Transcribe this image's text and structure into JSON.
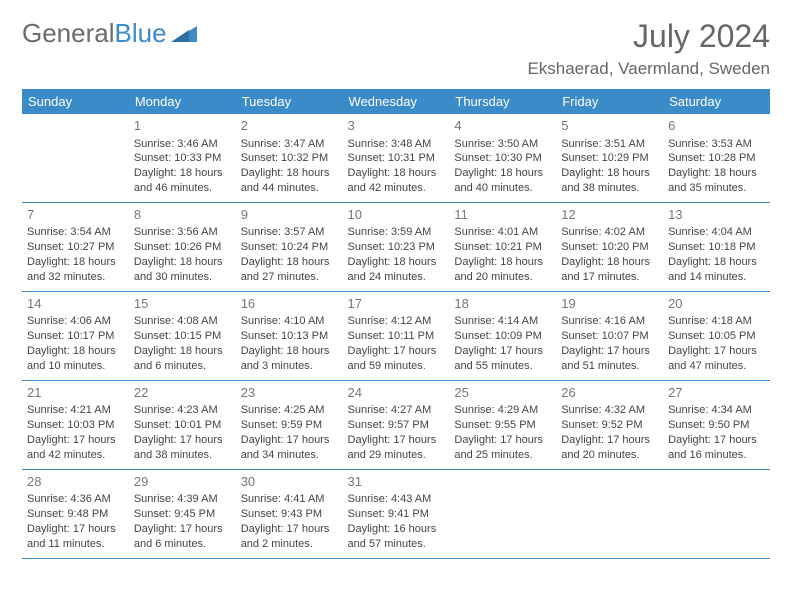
{
  "logo": {
    "text1": "General",
    "text2": "Blue"
  },
  "title": "July 2024",
  "location": "Ekshaerad, Vaermland, Sweden",
  "colors": {
    "header_bg": "#3b8bc9",
    "header_text": "#ffffff",
    "border": "#3b8bc9",
    "daynum": "#777777",
    "body_text": "#444444",
    "title_text": "#666666"
  },
  "weekdays": [
    "Sunday",
    "Monday",
    "Tuesday",
    "Wednesday",
    "Thursday",
    "Friday",
    "Saturday"
  ],
  "weeks": [
    [
      null,
      {
        "d": "1",
        "sr": "3:46 AM",
        "ss": "10:33 PM",
        "dl": "18 hours and 46 minutes."
      },
      {
        "d": "2",
        "sr": "3:47 AM",
        "ss": "10:32 PM",
        "dl": "18 hours and 44 minutes."
      },
      {
        "d": "3",
        "sr": "3:48 AM",
        "ss": "10:31 PM",
        "dl": "18 hours and 42 minutes."
      },
      {
        "d": "4",
        "sr": "3:50 AM",
        "ss": "10:30 PM",
        "dl": "18 hours and 40 minutes."
      },
      {
        "d": "5",
        "sr": "3:51 AM",
        "ss": "10:29 PM",
        "dl": "18 hours and 38 minutes."
      },
      {
        "d": "6",
        "sr": "3:53 AM",
        "ss": "10:28 PM",
        "dl": "18 hours and 35 minutes."
      }
    ],
    [
      {
        "d": "7",
        "sr": "3:54 AM",
        "ss": "10:27 PM",
        "dl": "18 hours and 32 minutes."
      },
      {
        "d": "8",
        "sr": "3:56 AM",
        "ss": "10:26 PM",
        "dl": "18 hours and 30 minutes."
      },
      {
        "d": "9",
        "sr": "3:57 AM",
        "ss": "10:24 PM",
        "dl": "18 hours and 27 minutes."
      },
      {
        "d": "10",
        "sr": "3:59 AM",
        "ss": "10:23 PM",
        "dl": "18 hours and 24 minutes."
      },
      {
        "d": "11",
        "sr": "4:01 AM",
        "ss": "10:21 PM",
        "dl": "18 hours and 20 minutes."
      },
      {
        "d": "12",
        "sr": "4:02 AM",
        "ss": "10:20 PM",
        "dl": "18 hours and 17 minutes."
      },
      {
        "d": "13",
        "sr": "4:04 AM",
        "ss": "10:18 PM",
        "dl": "18 hours and 14 minutes."
      }
    ],
    [
      {
        "d": "14",
        "sr": "4:06 AM",
        "ss": "10:17 PM",
        "dl": "18 hours and 10 minutes."
      },
      {
        "d": "15",
        "sr": "4:08 AM",
        "ss": "10:15 PM",
        "dl": "18 hours and 6 minutes."
      },
      {
        "d": "16",
        "sr": "4:10 AM",
        "ss": "10:13 PM",
        "dl": "18 hours and 3 minutes."
      },
      {
        "d": "17",
        "sr": "4:12 AM",
        "ss": "10:11 PM",
        "dl": "17 hours and 59 minutes."
      },
      {
        "d": "18",
        "sr": "4:14 AM",
        "ss": "10:09 PM",
        "dl": "17 hours and 55 minutes."
      },
      {
        "d": "19",
        "sr": "4:16 AM",
        "ss": "10:07 PM",
        "dl": "17 hours and 51 minutes."
      },
      {
        "d": "20",
        "sr": "4:18 AM",
        "ss": "10:05 PM",
        "dl": "17 hours and 47 minutes."
      }
    ],
    [
      {
        "d": "21",
        "sr": "4:21 AM",
        "ss": "10:03 PM",
        "dl": "17 hours and 42 minutes."
      },
      {
        "d": "22",
        "sr": "4:23 AM",
        "ss": "10:01 PM",
        "dl": "17 hours and 38 minutes."
      },
      {
        "d": "23",
        "sr": "4:25 AM",
        "ss": "9:59 PM",
        "dl": "17 hours and 34 minutes."
      },
      {
        "d": "24",
        "sr": "4:27 AM",
        "ss": "9:57 PM",
        "dl": "17 hours and 29 minutes."
      },
      {
        "d": "25",
        "sr": "4:29 AM",
        "ss": "9:55 PM",
        "dl": "17 hours and 25 minutes."
      },
      {
        "d": "26",
        "sr": "4:32 AM",
        "ss": "9:52 PM",
        "dl": "17 hours and 20 minutes."
      },
      {
        "d": "27",
        "sr": "4:34 AM",
        "ss": "9:50 PM",
        "dl": "17 hours and 16 minutes."
      }
    ],
    [
      {
        "d": "28",
        "sr": "4:36 AM",
        "ss": "9:48 PM",
        "dl": "17 hours and 11 minutes."
      },
      {
        "d": "29",
        "sr": "4:39 AM",
        "ss": "9:45 PM",
        "dl": "17 hours and 6 minutes."
      },
      {
        "d": "30",
        "sr": "4:41 AM",
        "ss": "9:43 PM",
        "dl": "17 hours and 2 minutes."
      },
      {
        "d": "31",
        "sr": "4:43 AM",
        "ss": "9:41 PM",
        "dl": "16 hours and 57 minutes."
      },
      null,
      null,
      null
    ]
  ],
  "labels": {
    "sunrise": "Sunrise:",
    "sunset": "Sunset:",
    "daylight": "Daylight:"
  }
}
